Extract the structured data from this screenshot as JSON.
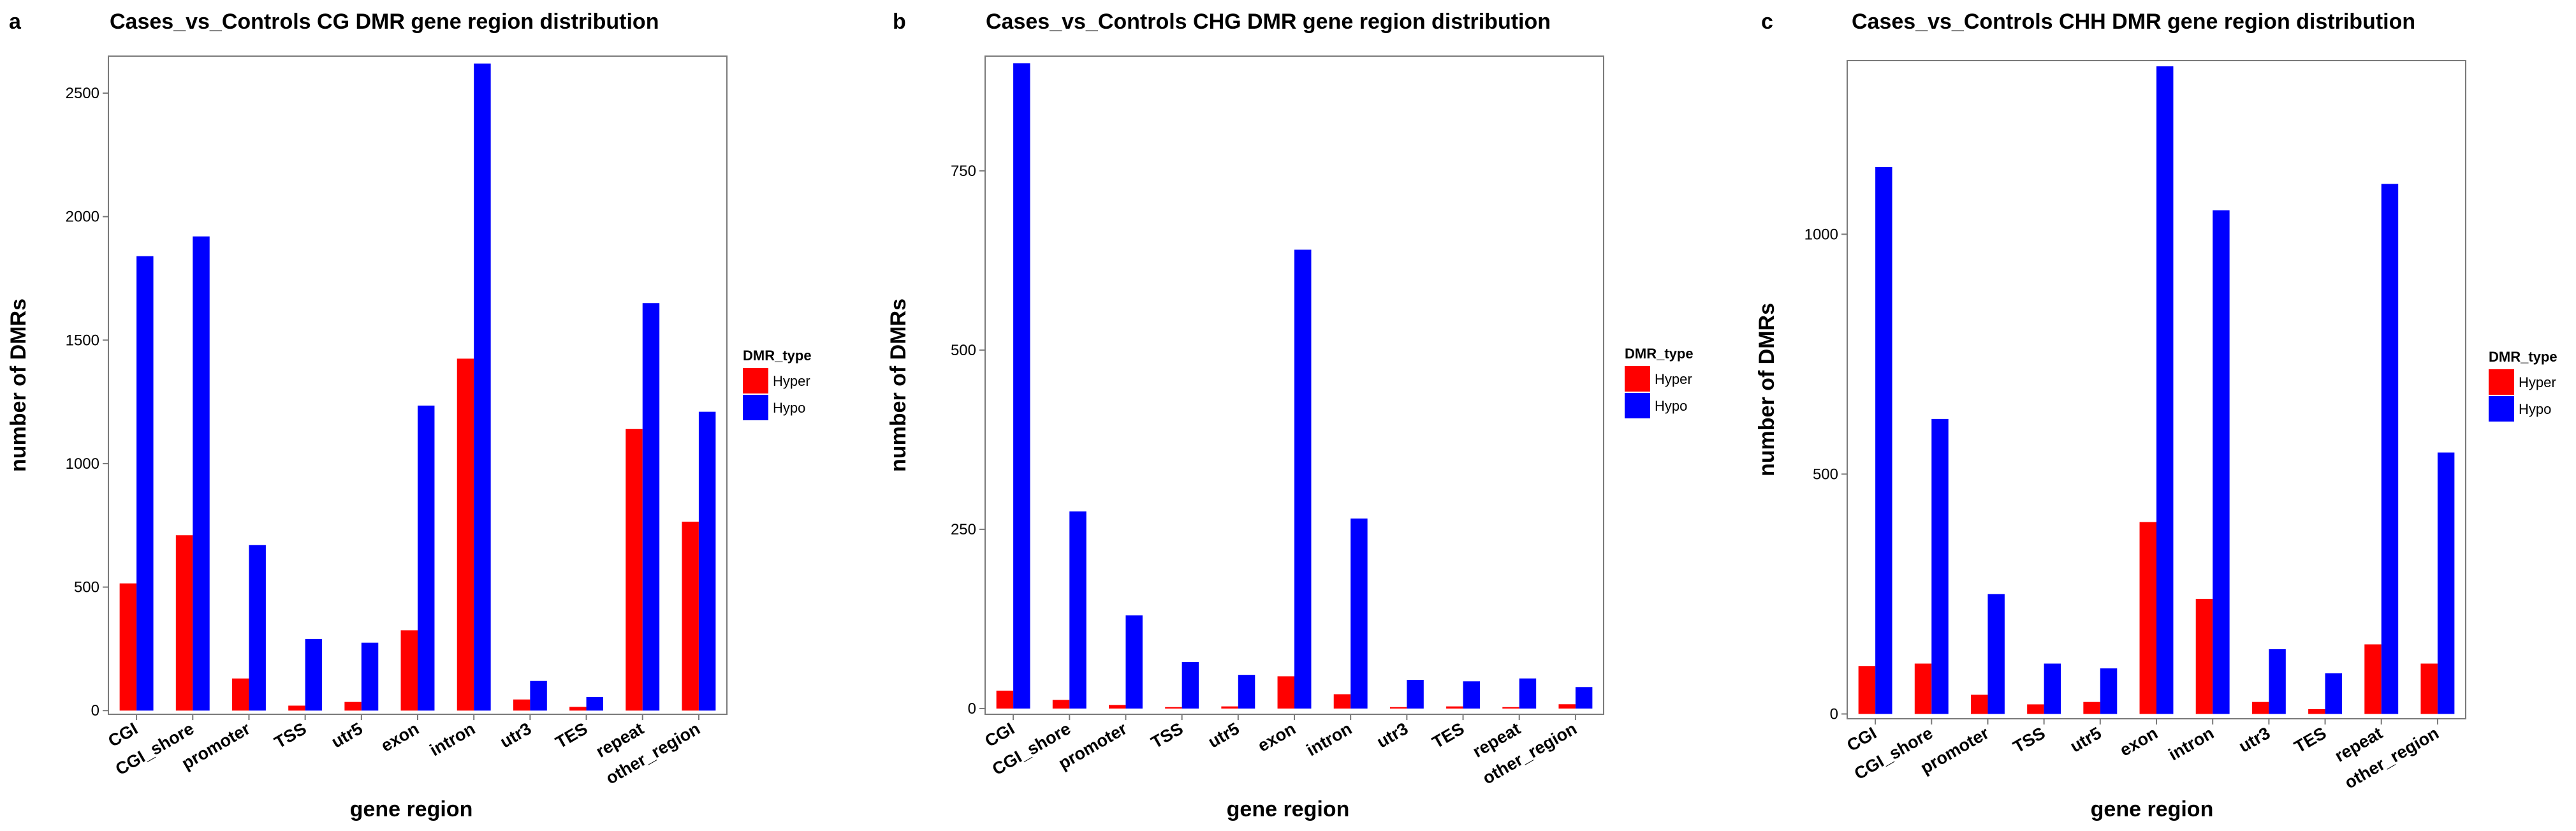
{
  "chart_data": [
    {
      "type": "bar",
      "panel_label": "a",
      "title": "Cases_vs_Controls  CG  DMR  gene region  distribution",
      "xlabel": "gene    region",
      "ylabel": "number    of    DMRs",
      "categories": [
        "CGI",
        "CGI_shore",
        "promoter",
        "TSS",
        "utr5",
        "exon",
        "intron",
        "utr3",
        "TES",
        "repeat",
        "other_region"
      ],
      "series": [
        {
          "name": "Hyper",
          "color": "#ff0000",
          "values": [
            515,
            710,
            130,
            20,
            35,
            325,
            1425,
            45,
            15,
            1140,
            765
          ]
        },
        {
          "name": "Hypo",
          "color": "#0000ff",
          "values": [
            1840,
            1920,
            670,
            290,
            275,
            1235,
            2620,
            120,
            55,
            1650,
            1210
          ]
        }
      ],
      "ylim": [
        -15,
        2650
      ],
      "yticks": [
        0,
        500,
        1000,
        1500,
        2000,
        2500
      ],
      "legend_title": "DMR_type",
      "legend_placement": "right",
      "grid": false
    },
    {
      "type": "bar",
      "panel_label": "b",
      "title": "Cases_vs_Controls  CHG  DMR  gene region  distribution",
      "xlabel": "gene    region",
      "ylabel": "number    of    DMRs",
      "categories": [
        "CGI",
        "CGI_shore",
        "promoter",
        "TSS",
        "utr5",
        "exon",
        "intron",
        "utr3",
        "TES",
        "repeat",
        "other_region"
      ],
      "series": [
        {
          "name": "Hyper",
          "color": "#ff0000",
          "values": [
            25,
            12,
            5,
            2,
            3,
            45,
            20,
            2,
            3,
            2,
            6
          ]
        },
        {
          "name": "Hypo",
          "color": "#0000ff",
          "values": [
            900,
            275,
            130,
            65,
            47,
            640,
            265,
            40,
            38,
            42,
            30
          ]
        }
      ],
      "ylim": [
        -8,
        910
      ],
      "yticks": [
        0,
        250,
        500,
        750
      ],
      "legend_title": "DMR_type",
      "legend_placement": "right",
      "grid": false
    },
    {
      "type": "bar",
      "panel_label": "c",
      "title": "Cases_vs_Controls  CHH  DMR  gene region  distribution",
      "xlabel": "gene    region",
      "ylabel": "number    of    DMRs",
      "categories": [
        "CGI",
        "CGI_shore",
        "promoter",
        "TSS",
        "utr5",
        "exon",
        "intron",
        "utr3",
        "TES",
        "repeat",
        "other_region"
      ],
      "series": [
        {
          "name": "Hyper",
          "color": "#ff0000",
          "values": [
            100,
            105,
            40,
            20,
            25,
            400,
            240,
            25,
            10,
            145,
            105
          ]
        },
        {
          "name": "Hypo",
          "color": "#0000ff",
          "values": [
            1140,
            615,
            250,
            105,
            95,
            1350,
            1050,
            135,
            85,
            1105,
            545
          ]
        }
      ],
      "ylim": [
        -10,
        1362
      ],
      "yticks": [
        0,
        500,
        1000
      ],
      "legend_title": "DMR_type",
      "legend_placement": "right",
      "grid": false
    }
  ]
}
